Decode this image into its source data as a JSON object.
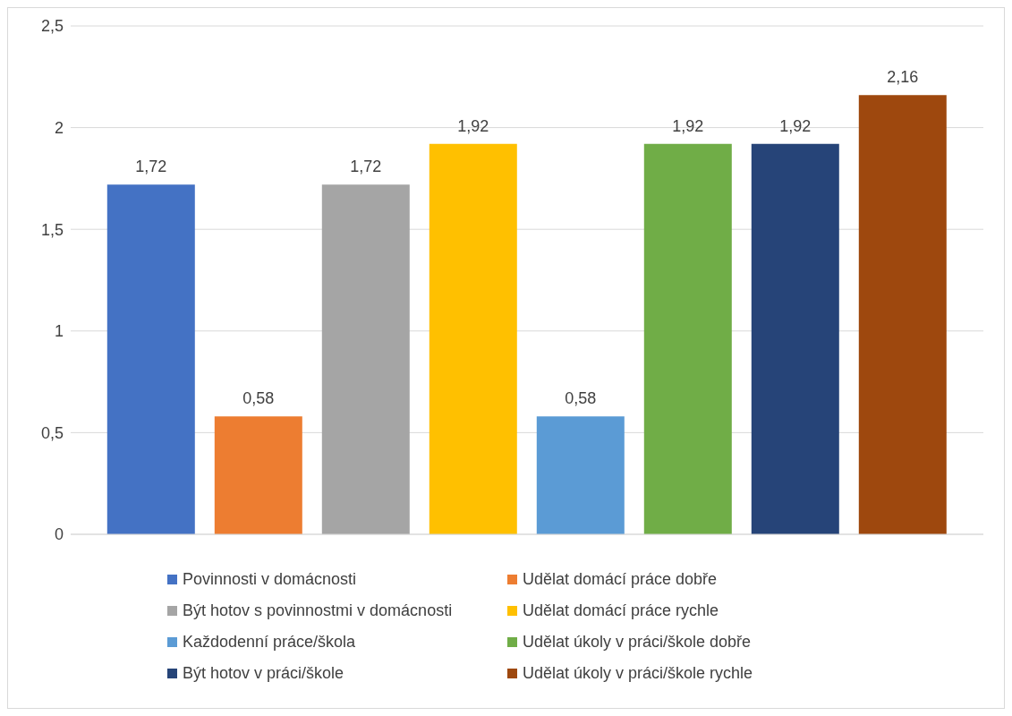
{
  "chart_data": {
    "type": "bar",
    "categories": [
      null
    ],
    "series": [
      {
        "name": "Povinnosti v domácnosti",
        "color": "#4472c4",
        "values": [
          1.72
        ],
        "value_labels": [
          "1,72"
        ]
      },
      {
        "name": "Udělat domácí práce dobře",
        "color": "#ed7d31",
        "values": [
          0.58
        ],
        "value_labels": [
          "0,58"
        ]
      },
      {
        "name": "Být hotov s povinnostmi v domácnosti",
        "color": "#a5a5a5",
        "values": [
          1.72
        ],
        "value_labels": [
          "1,72"
        ]
      },
      {
        "name": "Udělat domácí práce rychle",
        "color": "#ffc000",
        "values": [
          1.92
        ],
        "value_labels": [
          "1,92"
        ]
      },
      {
        "name": "Každodenní práce/škola",
        "color": "#5b9bd5",
        "values": [
          0.58
        ],
        "value_labels": [
          "0,58"
        ]
      },
      {
        "name": "Udělat úkoly v práci/škole dobře",
        "color": "#70ad47",
        "values": [
          1.92
        ],
        "value_labels": [
          "1,92"
        ]
      },
      {
        "name": "Být hotov v práci/škole",
        "color": "#264478",
        "values": [
          1.92
        ],
        "value_labels": [
          "1,92"
        ]
      },
      {
        "name": "Udělat úkoly v práci/škole rychle",
        "color": "#9e480e",
        "values": [
          2.16
        ],
        "value_labels": [
          "2,16"
        ]
      }
    ],
    "ylim": [
      0,
      2.5
    ],
    "yticks": [
      {
        "value": 0,
        "label": "0"
      },
      {
        "value": 0.5,
        "label": "0,5"
      },
      {
        "value": 1,
        "label": "1"
      },
      {
        "value": 1.5,
        "label": "1,5"
      },
      {
        "value": 2,
        "label": "2"
      },
      {
        "value": 2.5,
        "label": "2,5"
      }
    ],
    "grid": "y",
    "legend": "bottom"
  }
}
